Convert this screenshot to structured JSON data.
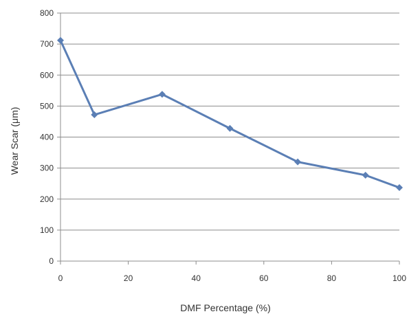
{
  "chart_data": {
    "type": "line",
    "title": "",
    "xlabel": "DMF Percentage (%)",
    "ylabel": "Wear Scar (μm)",
    "xlim": [
      0,
      100
    ],
    "ylim": [
      0,
      800
    ],
    "xticks": [
      0,
      20,
      40,
      60,
      80,
      100
    ],
    "yticks": [
      0,
      100,
      200,
      300,
      400,
      500,
      600,
      700,
      800
    ],
    "grid": "horizontal",
    "legend": "none",
    "marker": "diamond",
    "series": [
      {
        "color": "#5b7fb5",
        "x": [
          0,
          10,
          30,
          50,
          70,
          90,
          100
        ],
        "y": [
          712,
          472,
          538,
          428,
          320,
          277,
          237
        ]
      }
    ]
  }
}
